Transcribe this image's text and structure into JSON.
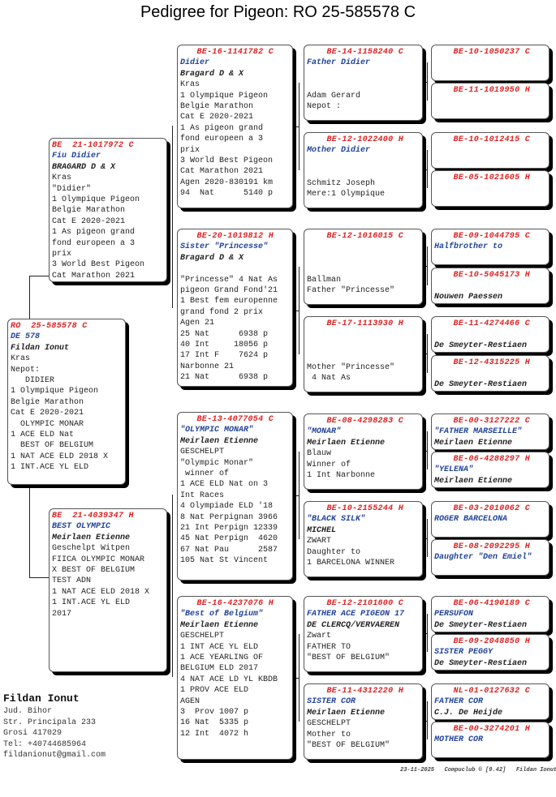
{
  "title": "Pedigree for Pigeon: RO  25-585578 C",
  "boxes": [
    {
      "id": "subject",
      "lines": [
        [
          "r",
          "RO  25-585578 C"
        ],
        [
          "n",
          "DE 578"
        ],
        [
          "b",
          "Fildan Ionut"
        ],
        [
          "t",
          "Kras"
        ],
        [
          "t",
          "Nepot:"
        ],
        [
          "t",
          "   DIDIER"
        ],
        [
          "t",
          "1 Olympique Pigeon"
        ],
        [
          "t",
          "Belgie Marathon"
        ],
        [
          "t",
          "Cat E 2020-2021"
        ],
        [
          "t",
          "  OLYMPIC MONAR"
        ],
        [
          "t",
          "1 ACE ELD Nat"
        ],
        [
          "t",
          "  BEST OF BELGIUM"
        ],
        [
          "t",
          "1 NAT ACE ELD 2018 X"
        ],
        [
          "t",
          "1 INT.ACE YL ELD"
        ]
      ]
    },
    {
      "id": "sire",
      "lines": [
        [
          "r",
          "BE  21-1017972 C"
        ],
        [
          "n",
          "Fiu Didier"
        ],
        [
          "b",
          "BRAGARD D & X"
        ],
        [
          "t",
          "Kras"
        ],
        [
          "t",
          "\"Didier\""
        ],
        [
          "t",
          "1 Olympique Pigeon"
        ],
        [
          "t",
          "Belgie Marathon"
        ],
        [
          "t",
          "Cat E 2020-2021"
        ],
        [
          "t",
          "1 As pigeon grand"
        ],
        [
          "t",
          "fond europeen a 3"
        ],
        [
          "t",
          "prix"
        ],
        [
          "t",
          "3 World Best Pigeon"
        ],
        [
          "t",
          "Cat Marathon 2021"
        ]
      ]
    },
    {
      "id": "dam",
      "lines": [
        [
          "r",
          "BE  21-4039347 H"
        ],
        [
          "n",
          "BEST OLYMPIC"
        ],
        [
          "b",
          "Meirlaen Etienne"
        ],
        [
          "t",
          "Geschelpt Witpen"
        ],
        [
          "t",
          "FIICA OLYMPIC MONAR"
        ],
        [
          "t",
          "X BEST OF BELGIUM"
        ],
        [
          "t",
          "TEST ADN"
        ],
        [
          "t",
          "1 NAT ACE ELD 2018 X"
        ],
        [
          "t",
          "1 INT.ACE YL ELD"
        ],
        [
          "t",
          "2017"
        ]
      ]
    },
    {
      "id": "ss",
      "lines": [
        [
          "r",
          "BE-16-1141782 C"
        ],
        [
          "n",
          "Didier"
        ],
        [
          "b",
          "Bragard D & X"
        ],
        [
          "t",
          "Kras"
        ],
        [
          "t",
          "1 Olympique Pigeon"
        ],
        [
          "t",
          "Belgie Marathon"
        ],
        [
          "t",
          "Cat E 2020-2021"
        ],
        [
          "t",
          "1 As pigeon grand"
        ],
        [
          "t",
          "fond europeen a 3"
        ],
        [
          "t",
          "prix"
        ],
        [
          "t",
          "3 World Best Pigeon"
        ],
        [
          "t",
          "Cat Marathon 2021"
        ],
        [
          "t",
          "Agen 2020-830191 km"
        ],
        [
          "t",
          "94  Nat      5140 p"
        ]
      ]
    },
    {
      "id": "sd",
      "lines": [
        [
          "r",
          "BE-20-1019812 H"
        ],
        [
          "n",
          "Sister \"Princesse\""
        ],
        [
          "b",
          "Bragard D & X"
        ],
        [
          "t",
          ""
        ],
        [
          "t",
          "\"Princesse\" 4 Nat As"
        ],
        [
          "t",
          "pigeon Grand Fond'21"
        ],
        [
          "t",
          "1 Best fem europenne"
        ],
        [
          "t",
          "grand fond 2 prix"
        ],
        [
          "t",
          "Agen 21"
        ],
        [
          "t",
          "25 Nat      6938 p"
        ],
        [
          "t",
          "40 Int     18056 p"
        ],
        [
          "t",
          "17 Int F    7624 p"
        ],
        [
          "t",
          "Narbonne 21"
        ],
        [
          "t",
          "21 Nat      6938 p"
        ]
      ]
    },
    {
      "id": "ds",
      "lines": [
        [
          "r",
          "BE-13-4077054 C"
        ],
        [
          "n",
          "\"OLYMPIC MONAR\""
        ],
        [
          "b",
          "Meirlaen Etienne"
        ],
        [
          "t",
          "GESCHELPT"
        ],
        [
          "t",
          "\"Olympic Monar\""
        ],
        [
          "t",
          " winner of"
        ],
        [
          "t",
          "1 ACE ELD Nat on 3"
        ],
        [
          "t",
          "Int Races"
        ],
        [
          "t",
          "4 Olympiade ELD '18"
        ],
        [
          "t",
          "8 Nat Perpignan 3966"
        ],
        [
          "t",
          "21 Int Perpign 12339"
        ],
        [
          "t",
          "45 Nat Perpign  4620"
        ],
        [
          "t",
          "67 Nat Pau      2587"
        ],
        [
          "t",
          "105 Nat St Vincent"
        ]
      ]
    },
    {
      "id": "dd",
      "lines": [
        [
          "r",
          "BE-16-4237076 H"
        ],
        [
          "n",
          "\"Best of Belgium\""
        ],
        [
          "b",
          "Meirlaen Etienne"
        ],
        [
          "t",
          "GESCHELPT"
        ],
        [
          "t",
          "1 INT ACE YL ELD"
        ],
        [
          "t",
          "1 ACE YEARLING OF"
        ],
        [
          "t",
          "BELGIUM ELD 2017"
        ],
        [
          "t",
          "4 NAT ACE LD YL KBDB"
        ],
        [
          "t",
          "1 PROV ACE ELD"
        ],
        [
          "t",
          "AGEN"
        ],
        [
          "t",
          "3  Prov 1007 p"
        ],
        [
          "t",
          "16 Nat  5335 p"
        ],
        [
          "t",
          "12 Int  4072 h"
        ]
      ]
    },
    {
      "id": "g3-1",
      "lines": [
        [
          "r",
          "BE-14-1158240 C"
        ],
        [
          "n",
          "Father Didier"
        ],
        [
          "t",
          ""
        ],
        [
          "t",
          ""
        ],
        [
          "t",
          "Adam Gerard"
        ],
        [
          "t",
          "Nepot :"
        ]
      ]
    },
    {
      "id": "g3-2",
      "lines": [
        [
          "r",
          "BE-12-1022400 H"
        ],
        [
          "n",
          "Mother Didier"
        ],
        [
          "t",
          ""
        ],
        [
          "t",
          ""
        ],
        [
          "t",
          "Schmitz Joseph"
        ],
        [
          "t",
          "Mere:1 Olympique"
        ]
      ]
    },
    {
      "id": "g3-3",
      "lines": [
        [
          "r",
          "BE-12-1016015 C"
        ],
        [
          "t",
          ""
        ],
        [
          "t",
          ""
        ],
        [
          "t",
          ""
        ],
        [
          "t",
          "Ballman"
        ],
        [
          "t",
          "Father \"Princesse\""
        ]
      ]
    },
    {
      "id": "g3-4",
      "lines": [
        [
          "r",
          "BE-17-1113930 H"
        ],
        [
          "t",
          ""
        ],
        [
          "t",
          ""
        ],
        [
          "t",
          ""
        ],
        [
          "t",
          "Mother \"Princesse\""
        ],
        [
          "t",
          " 4 Nat As"
        ]
      ]
    },
    {
      "id": "g3-5",
      "lines": [
        [
          "r",
          "BE-08-4298283 C"
        ],
        [
          "n",
          "\"MONAR\""
        ],
        [
          "b",
          "Meirlaen Etienne"
        ],
        [
          "t",
          "Blauw"
        ],
        [
          "t",
          "Winner of"
        ],
        [
          "t",
          "1 Int Narbonne"
        ]
      ]
    },
    {
      "id": "g3-6",
      "lines": [
        [
          "r",
          "BE-10-2155244 H"
        ],
        [
          "n",
          "\"BLACK SILK\""
        ],
        [
          "b",
          "MICHEL"
        ],
        [
          "t",
          "ZWART"
        ],
        [
          "t",
          "Daughter to"
        ],
        [
          "t",
          "1 BARCELONA WINNER"
        ]
      ]
    },
    {
      "id": "g3-7",
      "lines": [
        [
          "r",
          "BE-12-2101600 C"
        ],
        [
          "n",
          "FATHER ACE PIGEON 17"
        ],
        [
          "b",
          "DE CLERCQ/VERVAEREN"
        ],
        [
          "t",
          "Zwart"
        ],
        [
          "t",
          "FATHER TO"
        ],
        [
          "t",
          "\"BEST OF BELGIUM\""
        ]
      ]
    },
    {
      "id": "g3-8",
      "lines": [
        [
          "r",
          "BE-11-4312220 H"
        ],
        [
          "n",
          "SISTER COR"
        ],
        [
          "b",
          "Meirlaen Etienne"
        ],
        [
          "t",
          "GESCHELPT"
        ],
        [
          "t",
          "Mother to"
        ],
        [
          "t",
          "\"BEST OF BELGIUM\""
        ]
      ]
    },
    {
      "id": "g4-1",
      "lines": [
        [
          "r",
          "BE-10-1050237 C"
        ]
      ]
    },
    {
      "id": "g4-2",
      "lines": [
        [
          "r",
          "BE-11-1019950 H"
        ]
      ]
    },
    {
      "id": "g4-3",
      "lines": [
        [
          "r",
          "BE-10-1012415 C"
        ]
      ]
    },
    {
      "id": "g4-4",
      "lines": [
        [
          "r",
          "BE-05-1021605 H"
        ]
      ]
    },
    {
      "id": "g4-5",
      "lines": [
        [
          "r",
          "BE-09-1044795 C"
        ],
        [
          "n",
          "Halfbrother to"
        ]
      ]
    },
    {
      "id": "g4-6",
      "lines": [
        [
          "r",
          "BE-10-5045173 H"
        ],
        [
          "t",
          ""
        ],
        [
          "b",
          "Nouwen Paessen"
        ]
      ]
    },
    {
      "id": "g4-7",
      "lines": [
        [
          "r",
          "BE-11-4274466 C"
        ],
        [
          "t",
          ""
        ],
        [
          "b",
          "De Smeyter-Restiaen"
        ]
      ]
    },
    {
      "id": "g4-8",
      "lines": [
        [
          "r",
          "BE-12-4315225 H"
        ],
        [
          "t",
          ""
        ],
        [
          "b",
          "De Smeyter-Restiaen"
        ]
      ]
    },
    {
      "id": "g4-9",
      "lines": [
        [
          "r",
          "BE-00-3127222 C"
        ],
        [
          "n",
          "\"FATHER MARSEILLE\""
        ],
        [
          "b",
          "Meirlaen Etienne"
        ]
      ]
    },
    {
      "id": "g4-10",
      "lines": [
        [
          "r",
          "BE-06-4288297 H"
        ],
        [
          "n",
          "\"YELENA\""
        ],
        [
          "b",
          "Meirlaen Etienne"
        ]
      ]
    },
    {
      "id": "g4-11",
      "lines": [
        [
          "r",
          "BE-03-2010062 C"
        ],
        [
          "n",
          "ROGER BARCELONA"
        ]
      ]
    },
    {
      "id": "g4-12",
      "lines": [
        [
          "r",
          "BE-08-2092295 H"
        ],
        [
          "n",
          "Daughter \"Den Emiel\""
        ]
      ]
    },
    {
      "id": "g4-13",
      "lines": [
        [
          "r",
          "BE-06-4190189 C"
        ],
        [
          "n",
          "PERSUFON"
        ],
        [
          "b",
          "De Smeyter-Restiaen"
        ]
      ]
    },
    {
      "id": "g4-14",
      "lines": [
        [
          "r",
          "BE-09-2048850 H"
        ],
        [
          "n",
          "SISTER PEGGY"
        ],
        [
          "b",
          "De Smeyter-Restiaen"
        ]
      ]
    },
    {
      "id": "g4-15",
      "lines": [
        [
          "r",
          "NL-01-0127632 C"
        ],
        [
          "n",
          "FATHER COR"
        ],
        [
          "b",
          "C.J. De Heijde"
        ]
      ]
    },
    {
      "id": "g4-16",
      "lines": [
        [
          "r",
          "BE-00-3274201 H"
        ],
        [
          "n",
          "MOTHER COR"
        ]
      ]
    }
  ],
  "owner": {
    "name": "Fildan Ionut",
    "lines": [
      "Jud. Bihor",
      "Str. Principala 233",
      "Grosi 417029",
      "Tel: +40744685964",
      "fildanionut@gmail.com"
    ]
  },
  "footer": "23-11-2025   Compuclub © [9.42]   Fildan Ionut"
}
